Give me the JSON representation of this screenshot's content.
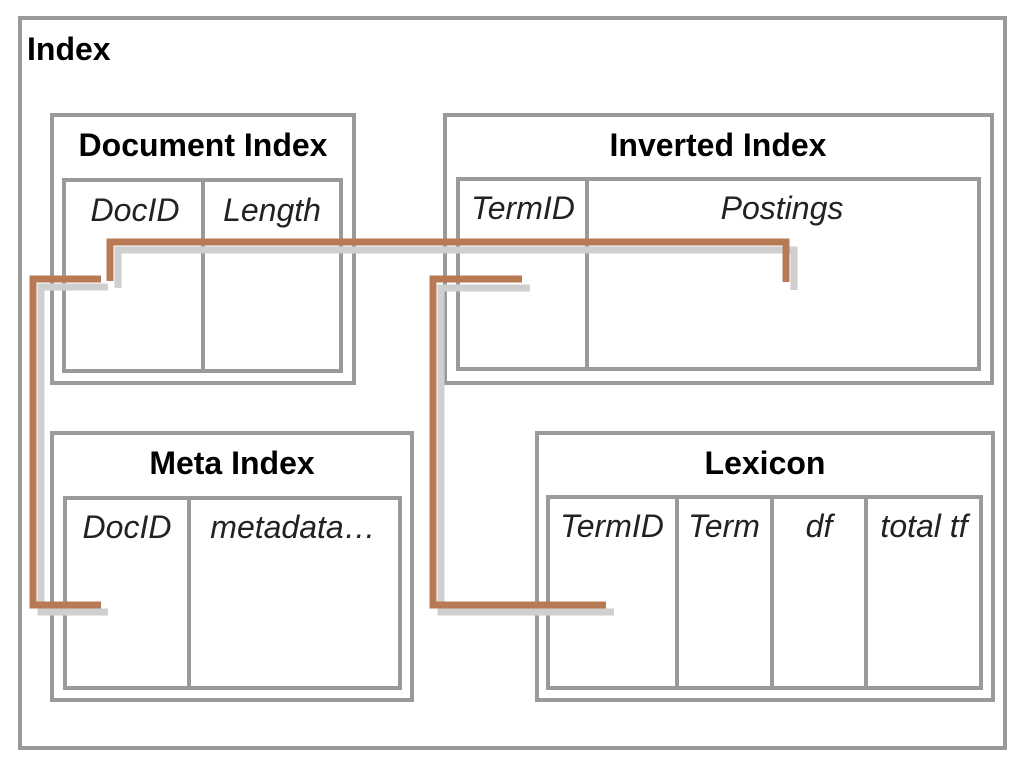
{
  "diagram": {
    "title": "Index",
    "document_index": {
      "title": "Document Index",
      "columns": [
        "DocID",
        "Length"
      ]
    },
    "inverted_index": {
      "title": "Inverted Index",
      "columns": [
        "TermID",
        "Postings"
      ]
    },
    "meta_index": {
      "title": "Meta Index",
      "columns": [
        "DocID",
        "metadata…"
      ]
    },
    "lexicon": {
      "title": "Lexicon",
      "columns": [
        "TermID",
        "Term",
        "df",
        "total tf"
      ]
    },
    "colors": {
      "border": "#9a9a9a",
      "link": "#b87a55"
    }
  }
}
